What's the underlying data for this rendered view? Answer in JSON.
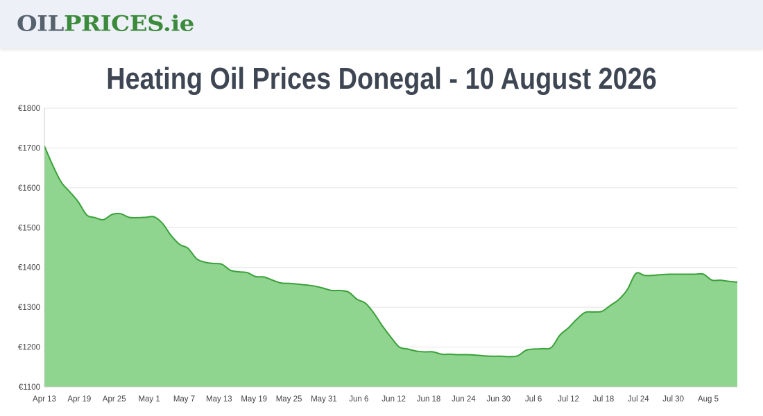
{
  "header": {
    "logo": {
      "part1": "OIL",
      "part2": "PRICES",
      "part3": ".ie"
    }
  },
  "page_title": "Heating Oil Prices Donegal - 10 August 2026",
  "colors": {
    "header_bg": "#edf0f6",
    "line": "#3aa03a",
    "fill": "#8fd48f",
    "logo_grey": "#56616e",
    "logo_green": "#3c8a3c"
  },
  "chart_data": {
    "type": "area",
    "title": "",
    "xlabel": "",
    "ylabel": "",
    "ylim": [
      1100,
      1800
    ],
    "yticks": [
      1100,
      1200,
      1300,
      1400,
      1500,
      1600,
      1700,
      1800
    ],
    "ytick_labels": [
      "€1100",
      "€1200",
      "€1300",
      "€1400",
      "€1500",
      "€1600",
      "€1700",
      "€1800"
    ],
    "xticks": [
      "Apr 13",
      "Apr 19",
      "Apr 25",
      "May 1",
      "May 7",
      "May 13",
      "May 19",
      "May 25",
      "May 31",
      "Jun 6",
      "Jun 12",
      "Jun 18",
      "Jun 24",
      "Jun 30",
      "Jul 6",
      "Jul 12",
      "Jul 18",
      "Jul 24",
      "Jul 30",
      "Aug 5"
    ],
    "grid": true,
    "series": [
      {
        "values": [
          1705,
          1656,
          1614,
          1590,
          1565,
          1532,
          1525,
          1520,
          1533,
          1535,
          1526,
          1525,
          1526,
          1527,
          1510,
          1480,
          1458,
          1448,
          1422,
          1413,
          1410,
          1408,
          1393,
          1389,
          1387,
          1377,
          1376,
          1368,
          1361,
          1360,
          1358,
          1356,
          1353,
          1348,
          1342,
          1342,
          1338,
          1320,
          1310,
          1285,
          1253,
          1225,
          1200,
          1195,
          1190,
          1188,
          1188,
          1182,
          1182,
          1181,
          1181,
          1180,
          1178,
          1177,
          1177,
          1176,
          1178,
          1192,
          1195,
          1196,
          1199,
          1230,
          1248,
          1270,
          1287,
          1288,
          1290,
          1305,
          1320,
          1345,
          1385,
          1380,
          1380,
          1382,
          1383,
          1383,
          1383,
          1383,
          1383,
          1368,
          1368,
          1365,
          1363
        ]
      }
    ]
  }
}
